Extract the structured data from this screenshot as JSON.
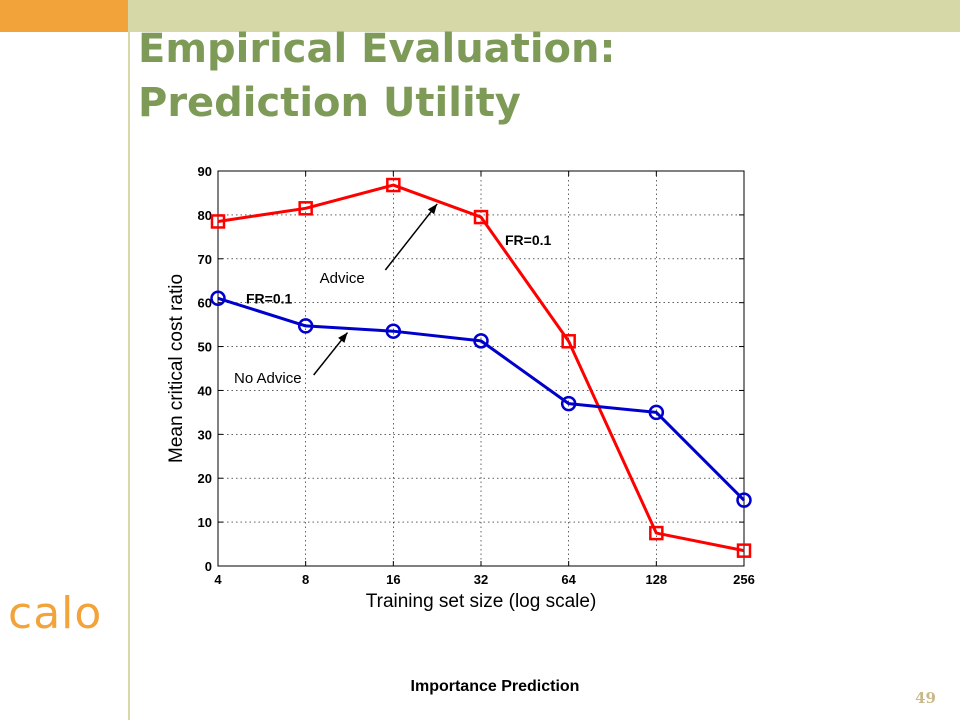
{
  "slide": {
    "title_line1": "Empirical Evaluation:",
    "title_line2": "Prediction Utility",
    "footer": "Importance Prediction",
    "page_number": "49",
    "logo": "calo"
  },
  "colors": {
    "orange": "#f2a33a",
    "band": "#d6d8a8",
    "title": "#7e9a57",
    "advice_series": "#ff0000",
    "no_advice_series": "#0000cc"
  },
  "chart_data": {
    "type": "line",
    "xlabel": "Training set size (log scale)",
    "ylabel": "Mean critical cost ratio",
    "x_scale": "log2",
    "x": [
      4,
      8,
      16,
      32,
      64,
      128,
      256
    ],
    "x_tick_labels": [
      "4",
      "8",
      "16",
      "32",
      "64",
      "128",
      "256"
    ],
    "y_ticks": [
      0,
      10,
      20,
      30,
      40,
      50,
      60,
      70,
      80,
      90
    ],
    "ylim": [
      0,
      90
    ],
    "xlim": [
      4,
      256
    ],
    "grid": true,
    "series": [
      {
        "name": "Advice",
        "marker": "square",
        "color": "#ff0000",
        "values": [
          78.5,
          81.5,
          86.8,
          79.5,
          51.2,
          7.5,
          3.5
        ]
      },
      {
        "name": "No Advice",
        "marker": "circle",
        "color": "#0000cc",
        "values": [
          61,
          54.7,
          53.5,
          51.3,
          37,
          35,
          15
        ]
      }
    ],
    "annotations": {
      "advice_label": "Advice",
      "no_advice_label": "No Advice",
      "fr_advice": "FR=0.1",
      "fr_no_advice": "FR=0.1"
    }
  }
}
